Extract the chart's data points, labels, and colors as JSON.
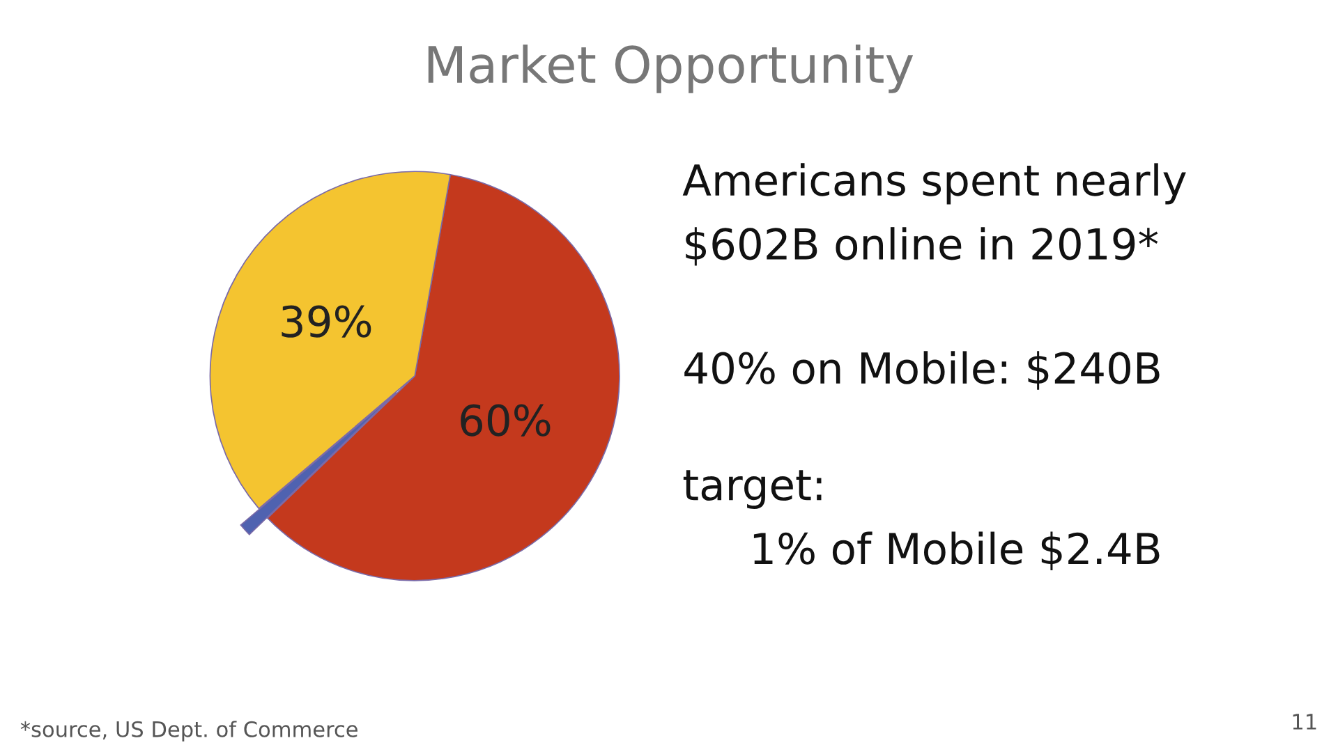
{
  "chart_data": {
    "type": "pie",
    "title": "Market Opportunity",
    "categories": [
      null,
      null,
      null
    ],
    "values": [
      60,
      1,
      39
    ],
    "colors": [
      "#c4391d",
      "#4f62b0",
      "#f4c430"
    ],
    "value_labels": [
      "60%",
      null,
      "39%"
    ],
    "annotations": [
      "Americans spent nearly",
      "$602B online in 2019*",
      "40% on Mobile: $240B",
      "target:",
      "1% of Mobile $2.4B",
      "*source, US Dept. of Commerce",
      "11"
    ]
  }
}
